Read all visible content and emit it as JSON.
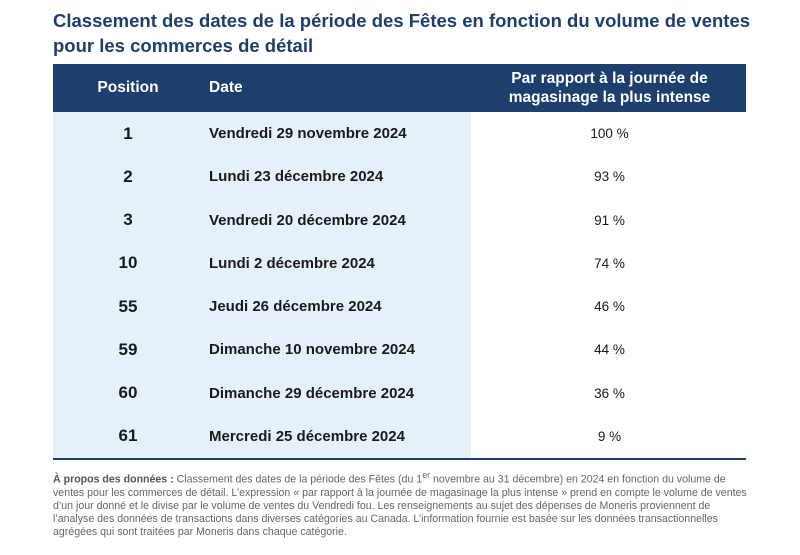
{
  "chart_data": {
    "type": "table",
    "title": "Classement des dates de la période des Fêtes en fonction du volume de ventes pour les commerces de détail",
    "columns": [
      "Position",
      "Date",
      "Par rapport à la journée de magasinage la plus intense"
    ],
    "rows": [
      {
        "position": "1",
        "date": "Vendredi 29 novembre 2024",
        "relative": "100 %"
      },
      {
        "position": "2",
        "date": "Lundi 23 décembre 2024",
        "relative": "93 %"
      },
      {
        "position": "3",
        "date": "Vendredi 20 décembre 2024",
        "relative": "91 %"
      },
      {
        "position": "10",
        "date": "Lundi 2 décembre 2024",
        "relative": "74 %"
      },
      {
        "position": "55",
        "date": "Jeudi 26 décembre 2024",
        "relative": "46 %"
      },
      {
        "position": "59",
        "date": "Dimanche 10 novembre 2024",
        "relative": "44 %"
      },
      {
        "position": "60",
        "date": "Dimanche 29 décembre 2024",
        "relative": "36 %"
      },
      {
        "position": "61",
        "date": "Mercredi 25 décembre 2024",
        "relative": "9 %"
      }
    ]
  },
  "colors": {
    "header_bg": "#1d3f6e",
    "left_columns_bg": "#e4f1f9",
    "title": "#1d3f6e"
  },
  "note": {
    "label": "À propos des données :",
    "text_before_sup": " Classement des dates de la période des Fêtes (du 1",
    "sup": "er",
    "text_after_sup": " novembre au 31 décembre) en 2024 en fonction du volume de ventes pour les commerces de détail. L’expression « par rapport à la journée de magasinage la plus intense » prend en compte le volume de ventes d’un jour donné et le divise par le volume de ventes du Vendredi fou. Les renseignements au sujet des dépenses de Moneris proviennent de l’analyse des données de transactions dans diverses catégories au Canada. L’information fournie est basée sur les données transactionnelles agrégées qui sont traitées par Moneris dans chaque catégorie."
  }
}
